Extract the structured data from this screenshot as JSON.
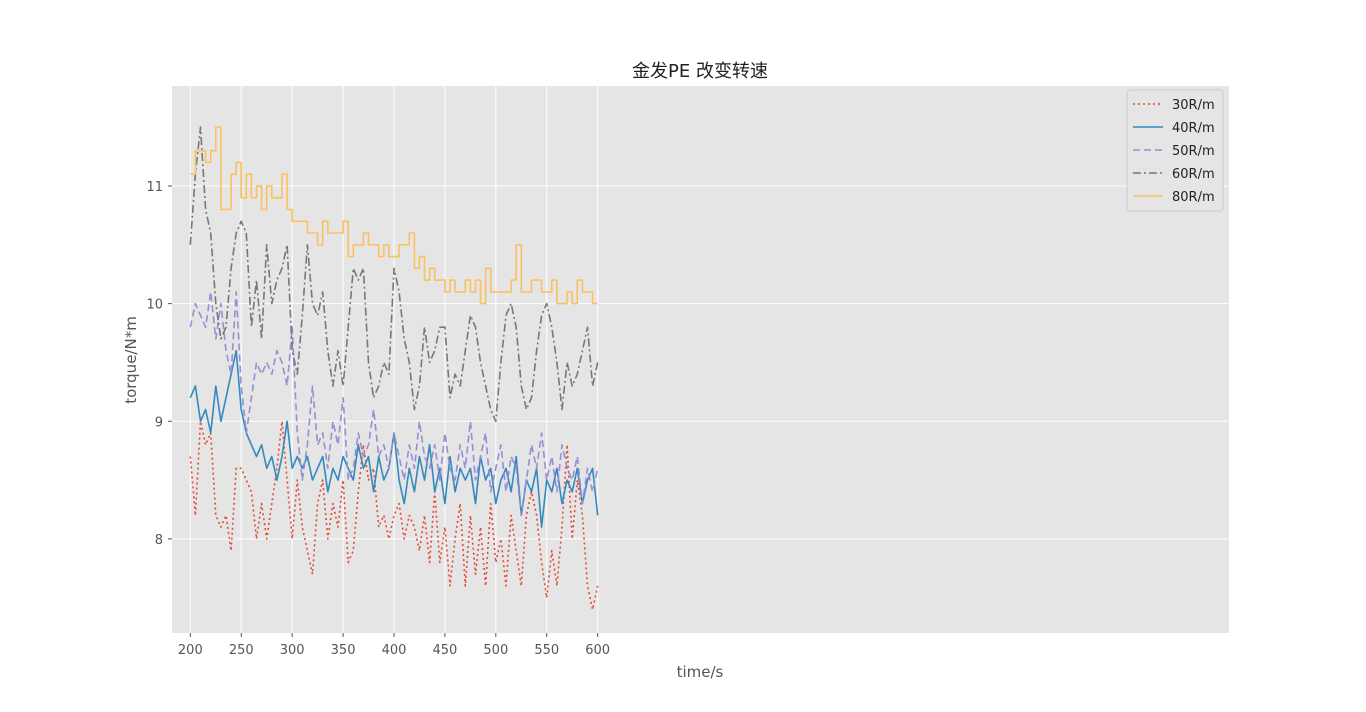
{
  "chart_data": {
    "type": "line",
    "title": "金发PE 改变转速",
    "xlabel": "time/s",
    "ylabel": "torque/N*m",
    "xlim": [
      182,
      1220
    ],
    "ylim": [
      7.2,
      11.85
    ],
    "x_ticks": [
      200,
      250,
      300,
      350,
      400,
      450,
      500,
      550,
      600
    ],
    "y_ticks": [
      8,
      9,
      10,
      11
    ],
    "grid": true,
    "legend_position": "top-right",
    "colors": {
      "background": "#e5e5e5",
      "grid": "#ffffff",
      "30R/m": "#e24a33",
      "40R/m": "#348abd",
      "50R/m": "#988ed5",
      "60R/m": "#777777",
      "80R/m": "#fbc15e"
    },
    "series": [
      {
        "name": "30R/m",
        "style": "dotted",
        "x": [
          200,
          205,
          210,
          215,
          220,
          225,
          230,
          235,
          240,
          245,
          250,
          255,
          260,
          265,
          270,
          275,
          280,
          285,
          290,
          295,
          300,
          305,
          310,
          315,
          320,
          325,
          330,
          335,
          340,
          345,
          350,
          355,
          360,
          365,
          370,
          375,
          380,
          385,
          390,
          395,
          400,
          405,
          410,
          415,
          420,
          425,
          430,
          435,
          440,
          445,
          450,
          455,
          460,
          465,
          470,
          475,
          480,
          485,
          490,
          495,
          500,
          505,
          510,
          515,
          520,
          525,
          530,
          535,
          540,
          545,
          550,
          555,
          560,
          565,
          570,
          575,
          580,
          585,
          590,
          595,
          600
        ],
        "values": [
          8.7,
          8.2,
          9.0,
          8.8,
          8.9,
          8.2,
          8.1,
          8.2,
          7.9,
          8.6,
          8.6,
          8.5,
          8.4,
          8.0,
          8.3,
          8.0,
          8.3,
          8.6,
          9.0,
          8.5,
          8.0,
          8.5,
          8.1,
          7.9,
          7.7,
          8.3,
          8.5,
          8.0,
          8.3,
          8.1,
          8.5,
          7.8,
          7.9,
          8.4,
          8.8,
          8.5,
          8.6,
          8.1,
          8.2,
          8.0,
          8.2,
          8.3,
          8.0,
          8.2,
          8.1,
          7.9,
          8.2,
          7.8,
          8.4,
          7.8,
          8.1,
          7.6,
          8.0,
          8.3,
          7.6,
          8.2,
          7.7,
          8.1,
          7.6,
          8.3,
          7.8,
          8.0,
          7.6,
          8.2,
          7.9,
          7.6,
          8.2,
          8.4,
          8.2,
          7.8,
          7.5,
          7.9,
          7.6,
          8.1,
          8.8,
          8.0,
          8.5,
          8.2,
          7.6,
          7.4,
          7.6
        ]
      },
      {
        "name": "40R/m",
        "style": "solid",
        "x": [
          200,
          205,
          210,
          215,
          220,
          225,
          230,
          235,
          240,
          245,
          250,
          255,
          260,
          265,
          270,
          275,
          280,
          285,
          290,
          295,
          300,
          305,
          310,
          315,
          320,
          325,
          330,
          335,
          340,
          345,
          350,
          355,
          360,
          365,
          370,
          375,
          380,
          385,
          390,
          395,
          400,
          405,
          410,
          415,
          420,
          425,
          430,
          435,
          440,
          445,
          450,
          455,
          460,
          465,
          470,
          475,
          480,
          485,
          490,
          495,
          500,
          505,
          510,
          515,
          520,
          525,
          530,
          535,
          540,
          545,
          550,
          555,
          560,
          565,
          570,
          575,
          580,
          585,
          590,
          595,
          600
        ],
        "values": [
          9.2,
          9.3,
          9.0,
          9.1,
          8.9,
          9.3,
          9.0,
          9.2,
          9.4,
          9.6,
          9.1,
          8.9,
          8.8,
          8.7,
          8.8,
          8.6,
          8.7,
          8.5,
          8.7,
          9.0,
          8.6,
          8.7,
          8.6,
          8.7,
          8.5,
          8.6,
          8.7,
          8.4,
          8.6,
          8.5,
          8.7,
          8.6,
          8.5,
          8.8,
          8.6,
          8.7,
          8.4,
          8.7,
          8.5,
          8.6,
          8.9,
          8.5,
          8.3,
          8.6,
          8.4,
          8.7,
          8.5,
          8.8,
          8.4,
          8.6,
          8.3,
          8.7,
          8.4,
          8.6,
          8.5,
          8.6,
          8.3,
          8.7,
          8.5,
          8.6,
          8.3,
          8.5,
          8.6,
          8.4,
          8.7,
          8.2,
          8.5,
          8.4,
          8.6,
          8.1,
          8.5,
          8.4,
          8.6,
          8.3,
          8.5,
          8.4,
          8.6,
          8.3,
          8.5,
          8.6,
          8.2
        ]
      },
      {
        "name": "50R/m",
        "style": "dashed",
        "x": [
          200,
          205,
          210,
          215,
          220,
          225,
          230,
          235,
          240,
          245,
          250,
          255,
          260,
          265,
          270,
          275,
          280,
          285,
          290,
          295,
          300,
          305,
          310,
          315,
          320,
          325,
          330,
          335,
          340,
          345,
          350,
          355,
          360,
          365,
          370,
          375,
          380,
          385,
          390,
          395,
          400,
          405,
          410,
          415,
          420,
          425,
          430,
          435,
          440,
          445,
          450,
          455,
          460,
          465,
          470,
          475,
          480,
          485,
          490,
          495,
          500,
          505,
          510,
          515,
          520,
          525,
          530,
          535,
          540,
          545,
          550,
          555,
          560,
          565,
          570,
          575,
          580,
          585,
          590,
          595,
          600
        ],
        "values": [
          9.8,
          10.0,
          9.9,
          9.8,
          10.1,
          9.7,
          10.0,
          9.6,
          9.4,
          10.1,
          9.3,
          8.9,
          9.2,
          9.5,
          9.4,
          9.5,
          9.4,
          9.6,
          9.5,
          9.3,
          9.8,
          8.9,
          8.5,
          8.8,
          9.3,
          8.8,
          8.9,
          8.6,
          9.0,
          8.8,
          9.2,
          8.5,
          8.6,
          8.9,
          8.7,
          8.8,
          9.1,
          8.7,
          8.8,
          8.6,
          8.9,
          8.7,
          8.5,
          8.8,
          8.6,
          9.0,
          8.7,
          8.6,
          8.8,
          8.5,
          8.9,
          8.6,
          8.5,
          8.8,
          8.6,
          9.0,
          8.5,
          8.7,
          8.9,
          8.4,
          8.6,
          8.8,
          8.4,
          8.7,
          8.6,
          8.2,
          8.5,
          8.8,
          8.6,
          8.9,
          8.5,
          8.7,
          8.4,
          8.8,
          8.6,
          8.5,
          8.7,
          8.3,
          8.6,
          8.4,
          8.6
        ]
      },
      {
        "name": "60R/m",
        "style": "dashdot",
        "x": [
          200,
          205,
          210,
          215,
          220,
          225,
          230,
          235,
          240,
          245,
          250,
          255,
          260,
          265,
          270,
          275,
          280,
          285,
          290,
          295,
          300,
          305,
          310,
          315,
          320,
          325,
          330,
          335,
          340,
          345,
          350,
          355,
          360,
          365,
          370,
          375,
          380,
          385,
          390,
          395,
          400,
          405,
          410,
          415,
          420,
          425,
          430,
          435,
          440,
          445,
          450,
          455,
          460,
          465,
          470,
          475,
          480,
          485,
          490,
          495,
          500,
          505,
          510,
          515,
          520,
          525,
          530,
          535,
          540,
          545,
          550,
          555,
          560,
          565,
          570,
          575,
          580,
          585,
          590,
          595,
          600
        ],
        "values": [
          10.5,
          11.1,
          11.5,
          10.8,
          10.6,
          10.0,
          9.7,
          9.8,
          10.3,
          10.6,
          10.7,
          10.6,
          9.8,
          10.2,
          9.7,
          10.5,
          10.0,
          10.2,
          10.3,
          10.5,
          9.6,
          9.4,
          9.9,
          10.5,
          10.0,
          9.9,
          10.1,
          9.6,
          9.3,
          9.6,
          9.3,
          9.8,
          10.3,
          10.2,
          10.3,
          9.5,
          9.2,
          9.3,
          9.5,
          9.4,
          10.3,
          10.1,
          9.7,
          9.5,
          9.1,
          9.3,
          9.8,
          9.5,
          9.6,
          9.8,
          9.8,
          9.2,
          9.4,
          9.3,
          9.6,
          9.9,
          9.8,
          9.5,
          9.3,
          9.1,
          9.0,
          9.5,
          9.9,
          10.0,
          9.8,
          9.3,
          9.1,
          9.2,
          9.6,
          9.9,
          10.0,
          9.8,
          9.5,
          9.1,
          9.5,
          9.3,
          9.4,
          9.6,
          9.8,
          9.3,
          9.5
        ]
      },
      {
        "name": "80R/m",
        "style": "step",
        "x": [
          200,
          205,
          210,
          215,
          220,
          225,
          230,
          235,
          240,
          245,
          250,
          255,
          260,
          265,
          270,
          275,
          280,
          285,
          290,
          295,
          300,
          305,
          310,
          315,
          320,
          325,
          330,
          335,
          340,
          345,
          350,
          355,
          360,
          365,
          370,
          375,
          380,
          385,
          390,
          395,
          400,
          405,
          410,
          415,
          420,
          425,
          430,
          435,
          440,
          445,
          450,
          455,
          460,
          465,
          470,
          475,
          480,
          485,
          490,
          495,
          500,
          505,
          510,
          515,
          520,
          525,
          530,
          535,
          540,
          545,
          550,
          555,
          560,
          565,
          570,
          575,
          580,
          585,
          590,
          595,
          600
        ],
        "values": [
          11.1,
          11.3,
          11.3,
          11.2,
          11.3,
          11.5,
          10.8,
          10.8,
          11.1,
          11.2,
          10.9,
          11.1,
          10.9,
          11.0,
          10.8,
          11.0,
          10.9,
          10.9,
          11.1,
          10.8,
          10.7,
          10.7,
          10.7,
          10.6,
          10.6,
          10.5,
          10.7,
          10.6,
          10.6,
          10.6,
          10.7,
          10.4,
          10.5,
          10.5,
          10.6,
          10.5,
          10.5,
          10.4,
          10.5,
          10.4,
          10.4,
          10.5,
          10.5,
          10.6,
          10.3,
          10.4,
          10.2,
          10.3,
          10.2,
          10.2,
          10.1,
          10.2,
          10.1,
          10.1,
          10.2,
          10.1,
          10.2,
          10.0,
          10.3,
          10.1,
          10.1,
          10.1,
          10.1,
          10.2,
          10.5,
          10.1,
          10.1,
          10.2,
          10.2,
          10.1,
          10.1,
          10.2,
          10.0,
          10.0,
          10.1,
          10.0,
          10.2,
          10.1,
          10.1,
          10.0,
          10.0
        ]
      }
    ]
  }
}
